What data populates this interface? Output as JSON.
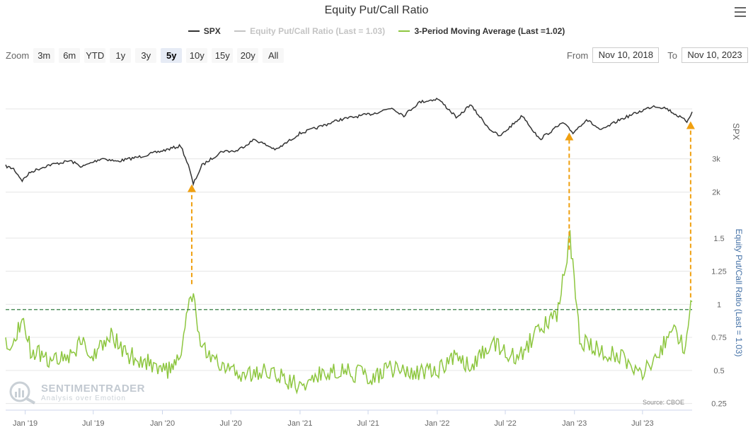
{
  "header": {
    "title": "Equity Put/Call Ratio",
    "menu_icon": "hamburger-menu-icon"
  },
  "legend": [
    {
      "label": "SPX",
      "color": "#333333",
      "visible": true
    },
    {
      "label": "Equity Put/Call Ratio (Last = 1.03)",
      "color": "#c4c4c4",
      "visible": false
    },
    {
      "label": "3-Period Moving Average (Last =1.02)",
      "color": "#8dc63f",
      "visible": true
    }
  ],
  "zoom": {
    "label": "Zoom",
    "buttons": [
      "3m",
      "6m",
      "YTD",
      "1y",
      "3y",
      "5y",
      "10y",
      "15y",
      "20y",
      "All"
    ],
    "selected": "5y"
  },
  "range": {
    "from_label": "From",
    "from_value": "Nov 10, 2018",
    "to_label": "To",
    "to_value": "Nov 10, 2023"
  },
  "credits": "Source: CBOE",
  "watermark": {
    "main": "SENTIMENTRADER",
    "sub": "Analysis over Emotion"
  },
  "chart_data": {
    "type": "line",
    "x_tick_labels": [
      "Jan '19",
      "Jul '19",
      "Jan '20",
      "Jul '20",
      "Jan '21",
      "Jul '21",
      "Jan '22",
      "Jul '22",
      "Jan '23",
      "Jul '23"
    ],
    "x_range": [
      "2018-11-10",
      "2023-11-10"
    ],
    "y_axes": [
      {
        "title": "SPX",
        "ticks": [
          "2k",
          "3k"
        ],
        "tick_values": [
          2000,
          3000
        ],
        "range": [
          1400,
          5600
        ],
        "color": "#666666"
      },
      {
        "title": "Equity Put/Call Ratio (Last = 1.03)",
        "ticks": [
          "0.25",
          "0.5",
          "0.75",
          "1",
          "1.25",
          "1.5"
        ],
        "tick_values": [
          0.25,
          0.5,
          0.75,
          1,
          1.25,
          1.5
        ],
        "range": [
          0.2,
          1.75
        ],
        "color": "#4572a7"
      }
    ],
    "threshold": {
      "value": 0.96,
      "color": "#1a6b2a"
    },
    "series": [
      {
        "name": "SPX",
        "color": "#333333",
        "points": [
          [
            "2018-11-10",
            2780
          ],
          [
            "2018-12-01",
            2700
          ],
          [
            "2018-12-24",
            2350
          ],
          [
            "2019-01-15",
            2600
          ],
          [
            "2019-03-01",
            2800
          ],
          [
            "2019-05-01",
            2940
          ],
          [
            "2019-06-01",
            2760
          ],
          [
            "2019-07-25",
            3020
          ],
          [
            "2019-09-01",
            2920
          ],
          [
            "2019-11-01",
            3060
          ],
          [
            "2020-01-01",
            3240
          ],
          [
            "2020-02-19",
            3390
          ],
          [
            "2020-03-10",
            2800
          ],
          [
            "2020-03-23",
            2240
          ],
          [
            "2020-04-15",
            2800
          ],
          [
            "2020-06-08",
            3230
          ],
          [
            "2020-07-15",
            3230
          ],
          [
            "2020-09-02",
            3580
          ],
          [
            "2020-10-30",
            3270
          ],
          [
            "2020-12-31",
            3760
          ],
          [
            "2021-02-15",
            3930
          ],
          [
            "2021-04-15",
            4170
          ],
          [
            "2021-07-15",
            4360
          ],
          [
            "2021-09-02",
            4530
          ],
          [
            "2021-10-04",
            4300
          ],
          [
            "2021-11-15",
            4700
          ],
          [
            "2022-01-03",
            4800
          ],
          [
            "2022-02-24",
            4220
          ],
          [
            "2022-03-29",
            4630
          ],
          [
            "2022-05-20",
            3900
          ],
          [
            "2022-06-16",
            3670
          ],
          [
            "2022-08-16",
            4300
          ],
          [
            "2022-09-30",
            3580
          ],
          [
            "2022-12-01",
            4080
          ],
          [
            "2022-12-28",
            3780
          ],
          [
            "2023-02-02",
            4180
          ],
          [
            "2023-03-13",
            3850
          ],
          [
            "2023-05-01",
            4170
          ],
          [
            "2023-07-31",
            4590
          ],
          [
            "2023-09-01",
            4520
          ],
          [
            "2023-10-27",
            4120
          ],
          [
            "2023-11-10",
            4410
          ]
        ]
      },
      {
        "name": "3-Period Moving Average (Last =1.02)",
        "color": "#8dc63f",
        "points": [
          [
            "2018-11-10",
            0.68
          ],
          [
            "2018-12-10",
            0.78
          ],
          [
            "2018-12-24",
            0.93
          ],
          [
            "2019-01-15",
            0.66
          ],
          [
            "2019-03-01",
            0.58
          ],
          [
            "2019-05-01",
            0.62
          ],
          [
            "2019-06-01",
            0.72
          ],
          [
            "2019-07-01",
            0.6
          ],
          [
            "2019-08-10",
            0.78
          ],
          [
            "2019-10-01",
            0.62
          ],
          [
            "2019-12-01",
            0.56
          ],
          [
            "2020-01-15",
            0.5
          ],
          [
            "2020-02-20",
            0.58
          ],
          [
            "2020-03-01",
            0.8
          ],
          [
            "2020-03-16",
            1.12
          ],
          [
            "2020-04-15",
            0.7
          ],
          [
            "2020-06-01",
            0.52
          ],
          [
            "2020-08-01",
            0.46
          ],
          [
            "2020-10-01",
            0.5
          ],
          [
            "2020-12-01",
            0.42
          ],
          [
            "2021-01-15",
            0.38
          ],
          [
            "2021-03-01",
            0.48
          ],
          [
            "2021-05-01",
            0.5
          ],
          [
            "2021-07-15",
            0.44
          ],
          [
            "2021-09-01",
            0.52
          ],
          [
            "2021-11-01",
            0.47
          ],
          [
            "2022-01-01",
            0.5
          ],
          [
            "2022-02-15",
            0.6
          ],
          [
            "2022-04-01",
            0.52
          ],
          [
            "2022-06-01",
            0.72
          ],
          [
            "2022-08-01",
            0.58
          ],
          [
            "2022-10-01",
            0.82
          ],
          [
            "2022-11-15",
            0.9
          ],
          [
            "2022-12-20",
            1.5
          ],
          [
            "2023-01-15",
            0.72
          ],
          [
            "2023-03-15",
            0.65
          ],
          [
            "2023-05-01",
            0.6
          ],
          [
            "2023-07-01",
            0.5
          ],
          [
            "2023-08-15",
            0.62
          ],
          [
            "2023-09-15",
            0.82
          ],
          [
            "2023-10-20",
            0.68
          ],
          [
            "2023-11-10",
            1.02
          ]
        ]
      }
    ],
    "annotations": [
      {
        "type": "arrow",
        "date": "2020-03-19",
        "from_value": 1.12,
        "to_spx": 2300,
        "color": "#f0a010"
      },
      {
        "type": "arrow",
        "date": "2022-12-18",
        "from_value": 1.38,
        "to_spx": 3850,
        "color": "#f0a010"
      },
      {
        "type": "arrow",
        "date": "2023-11-06",
        "from_value": 1.02,
        "to_spx": 4190,
        "color": "#f0a010"
      }
    ]
  }
}
